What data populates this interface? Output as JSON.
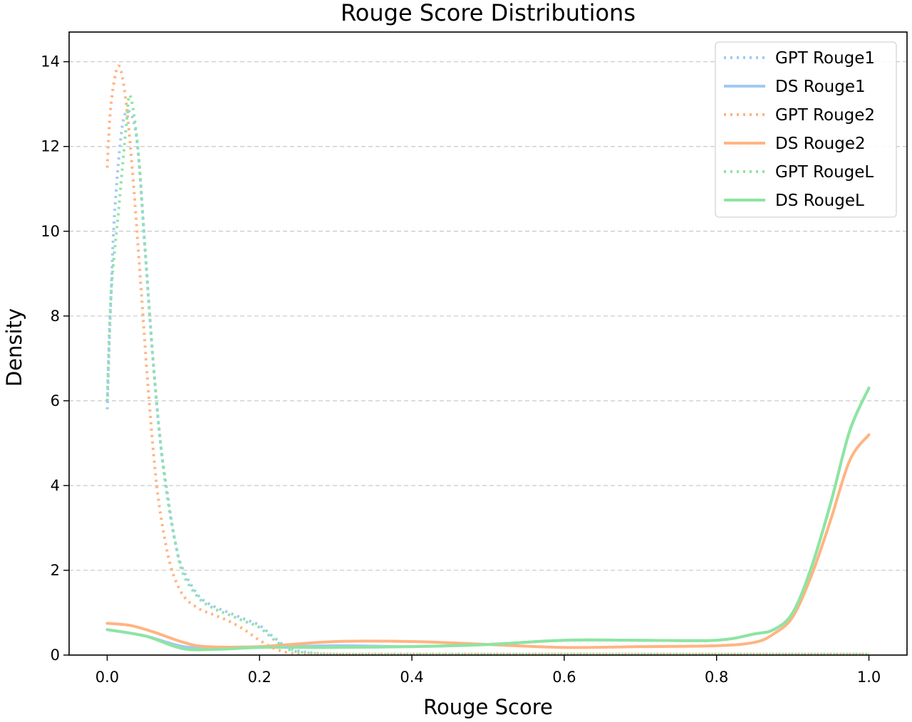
{
  "chart_data": {
    "type": "line",
    "title": "Rouge Score Distributions",
    "xlabel": "Rouge Score",
    "ylabel": "Density",
    "xlim": [
      -0.05,
      1.05
    ],
    "ylim": [
      0,
      14.7
    ],
    "xticks": [
      "0.0",
      "0.2",
      "0.4",
      "0.6",
      "0.8",
      "1.0"
    ],
    "yticks": [
      "0",
      "2",
      "4",
      "6",
      "8",
      "10",
      "12",
      "14"
    ],
    "grid": "y-dashed",
    "legend_position": "top-right",
    "series": [
      {
        "name": "GPT Rouge1",
        "color": "#a1c9f4",
        "style": "dotted",
        "points": [
          [
            0,
            5.8
          ],
          [
            0.005,
            8.5
          ],
          [
            0.01,
            10.5
          ],
          [
            0.02,
            12.5
          ],
          [
            0.03,
            12.8
          ],
          [
            0.04,
            12.0
          ],
          [
            0.05,
            9.5
          ],
          [
            0.06,
            7.0
          ],
          [
            0.07,
            5.0
          ],
          [
            0.08,
            3.7
          ],
          [
            0.09,
            2.6
          ],
          [
            0.1,
            2.0
          ],
          [
            0.12,
            1.4
          ],
          [
            0.14,
            1.15
          ],
          [
            0.16,
            1.0
          ],
          [
            0.18,
            0.85
          ],
          [
            0.2,
            0.7
          ],
          [
            0.22,
            0.4
          ],
          [
            0.24,
            0.15
          ],
          [
            0.27,
            0.05
          ],
          [
            0.3,
            0.02
          ],
          [
            0.35,
            0.02
          ],
          [
            0.5,
            0.02
          ],
          [
            0.7,
            0.02
          ],
          [
            0.9,
            0.02
          ],
          [
            1.0,
            0.02
          ]
        ]
      },
      {
        "name": "DS Rouge1",
        "color": "#a1c9f4",
        "style": "solid",
        "points": [
          [
            0,
            0.6
          ],
          [
            0.05,
            0.45
          ],
          [
            0.1,
            0.2
          ],
          [
            0.15,
            0.15
          ],
          [
            0.2,
            0.18
          ],
          [
            0.3,
            0.22
          ],
          [
            0.4,
            0.2
          ],
          [
            0.5,
            0.25
          ],
          [
            0.6,
            0.35
          ],
          [
            0.7,
            0.35
          ],
          [
            0.8,
            0.35
          ],
          [
            0.85,
            0.5
          ],
          [
            0.875,
            0.6
          ],
          [
            0.9,
            1.0
          ],
          [
            0.925,
            2.1
          ],
          [
            0.95,
            3.6
          ],
          [
            0.975,
            5.3
          ],
          [
            1.0,
            6.3
          ]
        ]
      },
      {
        "name": "GPT Rouge2",
        "color": "#ffb482",
        "style": "dotted",
        "points": [
          [
            0,
            11.5
          ],
          [
            0.005,
            13.0
          ],
          [
            0.015,
            13.9
          ],
          [
            0.025,
            13.0
          ],
          [
            0.035,
            11.0
          ],
          [
            0.045,
            8.5
          ],
          [
            0.055,
            6.0
          ],
          [
            0.065,
            4.0
          ],
          [
            0.075,
            2.8
          ],
          [
            0.085,
            2.0
          ],
          [
            0.1,
            1.4
          ],
          [
            0.12,
            1.1
          ],
          [
            0.14,
            0.95
          ],
          [
            0.16,
            0.8
          ],
          [
            0.18,
            0.6
          ],
          [
            0.2,
            0.35
          ],
          [
            0.22,
            0.15
          ],
          [
            0.24,
            0.05
          ],
          [
            0.27,
            0.02
          ],
          [
            0.35,
            0.02
          ],
          [
            0.5,
            0.02
          ],
          [
            0.7,
            0.02
          ],
          [
            0.9,
            0.02
          ],
          [
            1.0,
            0.02
          ]
        ]
      },
      {
        "name": "DS Rouge2",
        "color": "#ffb482",
        "style": "solid",
        "points": [
          [
            0,
            0.75
          ],
          [
            0.03,
            0.7
          ],
          [
            0.06,
            0.55
          ],
          [
            0.1,
            0.3
          ],
          [
            0.13,
            0.2
          ],
          [
            0.2,
            0.2
          ],
          [
            0.3,
            0.32
          ],
          [
            0.4,
            0.32
          ],
          [
            0.5,
            0.25
          ],
          [
            0.6,
            0.18
          ],
          [
            0.7,
            0.2
          ],
          [
            0.8,
            0.22
          ],
          [
            0.85,
            0.3
          ],
          [
            0.875,
            0.5
          ],
          [
            0.9,
            0.9
          ],
          [
            0.925,
            1.9
          ],
          [
            0.95,
            3.2
          ],
          [
            0.975,
            4.6
          ],
          [
            1.0,
            5.2
          ]
        ]
      },
      {
        "name": "GPT RougeL",
        "color": "#8de5a1",
        "style": "dotted",
        "points": [
          [
            0,
            6.0
          ],
          [
            0.005,
            8.5
          ],
          [
            0.015,
            10.5
          ],
          [
            0.025,
            12.5
          ],
          [
            0.03,
            13.2
          ],
          [
            0.04,
            12.0
          ],
          [
            0.05,
            9.5
          ],
          [
            0.06,
            7.0
          ],
          [
            0.07,
            5.0
          ],
          [
            0.08,
            3.6
          ],
          [
            0.09,
            2.6
          ],
          [
            0.1,
            1.9
          ],
          [
            0.12,
            1.35
          ],
          [
            0.14,
            1.1
          ],
          [
            0.16,
            0.95
          ],
          [
            0.18,
            0.8
          ],
          [
            0.2,
            0.65
          ],
          [
            0.22,
            0.35
          ],
          [
            0.24,
            0.12
          ],
          [
            0.27,
            0.04
          ],
          [
            0.3,
            0.02
          ],
          [
            0.5,
            0.02
          ],
          [
            0.7,
            0.02
          ],
          [
            0.9,
            0.02
          ],
          [
            1.0,
            0.02
          ]
        ]
      },
      {
        "name": "DS RougeL",
        "color": "#8de5a1",
        "style": "solid",
        "points": [
          [
            0,
            0.6
          ],
          [
            0.05,
            0.45
          ],
          [
            0.1,
            0.15
          ],
          [
            0.15,
            0.14
          ],
          [
            0.2,
            0.18
          ],
          [
            0.3,
            0.18
          ],
          [
            0.4,
            0.2
          ],
          [
            0.5,
            0.25
          ],
          [
            0.6,
            0.35
          ],
          [
            0.7,
            0.35
          ],
          [
            0.8,
            0.35
          ],
          [
            0.85,
            0.5
          ],
          [
            0.875,
            0.6
          ],
          [
            0.9,
            1.0
          ],
          [
            0.925,
            2.1
          ],
          [
            0.95,
            3.6
          ],
          [
            0.975,
            5.3
          ],
          [
            1.0,
            6.3
          ]
        ]
      }
    ]
  }
}
